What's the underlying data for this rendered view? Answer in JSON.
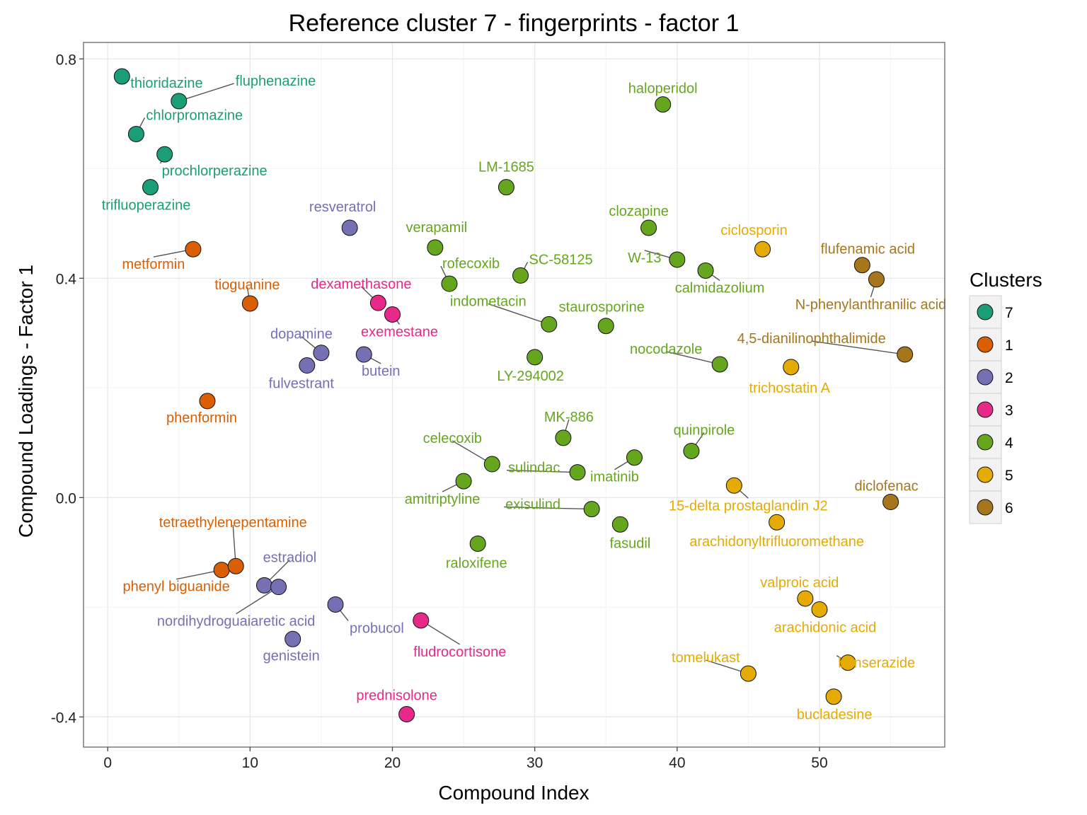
{
  "chart_data": {
    "type": "scatter",
    "title": "Reference cluster 7 - fingerprints - factor 1",
    "xlabel": "Compound Index",
    "ylabel": "Compound Loadings - Factor 1",
    "xlim": [
      -1.7,
      58.8
    ],
    "ylim": [
      -0.455,
      0.83
    ],
    "xticks": [
      0,
      10,
      20,
      30,
      40,
      50
    ],
    "yticks": [
      0.8,
      0.4,
      0.0,
      -0.4
    ],
    "ytick_labels": [
      "0.8",
      "0.4",
      "0.0",
      "-0.4"
    ],
    "grid": true,
    "legend": {
      "title": "Clusters",
      "placement": "right",
      "entries": [
        {
          "label": "7",
          "color": "#1B9E77"
        },
        {
          "label": "1",
          "color": "#D95F02"
        },
        {
          "label": "2",
          "color": "#7570B3"
        },
        {
          "label": "3",
          "color": "#E7298A"
        },
        {
          "label": "4",
          "color": "#66A61E"
        },
        {
          "label": "5",
          "color": "#E6AB02"
        },
        {
          "label": "6",
          "color": "#A6761D"
        }
      ]
    },
    "points": [
      {
        "name": "thioridazine",
        "x": 1,
        "y": 0.768,
        "cluster": "7"
      },
      {
        "name": "chlorpromazine",
        "x": 2,
        "y": 0.663,
        "cluster": "7"
      },
      {
        "name": "trifluoperazine",
        "x": 3,
        "y": 0.566,
        "cluster": "7"
      },
      {
        "name": "prochlorperazine",
        "x": 4,
        "y": 0.626,
        "cluster": "7"
      },
      {
        "name": "fluphenazine",
        "x": 5,
        "y": 0.723,
        "cluster": "7"
      },
      {
        "name": "metformin",
        "x": 6,
        "y": 0.453,
        "cluster": "1"
      },
      {
        "name": "phenformin",
        "x": 7,
        "y": 0.176,
        "cluster": "1"
      },
      {
        "name": "phenyl biguanide",
        "x": 8,
        "y": -0.132,
        "cluster": "1"
      },
      {
        "name": "tetraethylenepentamine",
        "x": 9,
        "y": -0.125,
        "cluster": "1"
      },
      {
        "name": "tioguanine",
        "x": 10,
        "y": 0.354,
        "cluster": "1"
      },
      {
        "name": "estradiol",
        "x": 11,
        "y": -0.16,
        "cluster": "2"
      },
      {
        "name": "nordihydroguaiaretic acid",
        "x": 12,
        "y": -0.163,
        "cluster": "2"
      },
      {
        "name": "genistein",
        "x": 13,
        "y": -0.258,
        "cluster": "2"
      },
      {
        "name": "fulvestrant",
        "x": 14,
        "y": 0.241,
        "cluster": "2"
      },
      {
        "name": "dopamine",
        "x": 15,
        "y": 0.264,
        "cluster": "2"
      },
      {
        "name": "probucol",
        "x": 16,
        "y": -0.195,
        "cluster": "2"
      },
      {
        "name": "resveratrol",
        "x": 17,
        "y": 0.492,
        "cluster": "2"
      },
      {
        "name": "butein",
        "x": 18,
        "y": 0.261,
        "cluster": "2"
      },
      {
        "name": "dexamethasone",
        "x": 19,
        "y": 0.355,
        "cluster": "3"
      },
      {
        "name": "exemestane",
        "x": 20,
        "y": 0.334,
        "cluster": "3"
      },
      {
        "name": "prednisolone",
        "x": 21,
        "y": -0.395,
        "cluster": "3"
      },
      {
        "name": "fludrocortisone",
        "x": 22,
        "y": -0.224,
        "cluster": "3"
      },
      {
        "name": "verapamil",
        "x": 23,
        "y": 0.456,
        "cluster": "4"
      },
      {
        "name": "rofecoxib",
        "x": 24,
        "y": 0.39,
        "cluster": "4"
      },
      {
        "name": "amitriptyline",
        "x": 25,
        "y": 0.03,
        "cluster": "4"
      },
      {
        "name": "raloxifene",
        "x": 26,
        "y": -0.084,
        "cluster": "4"
      },
      {
        "name": "celecoxib",
        "x": 27,
        "y": 0.061,
        "cluster": "4"
      },
      {
        "name": "LM-1685",
        "x": 28,
        "y": 0.566,
        "cluster": "4"
      },
      {
        "name": "SC-58125",
        "x": 29,
        "y": 0.405,
        "cluster": "4"
      },
      {
        "name": "LY-294002",
        "x": 30,
        "y": 0.256,
        "cluster": "4"
      },
      {
        "name": "indometacin",
        "x": 31,
        "y": 0.316,
        "cluster": "4"
      },
      {
        "name": "MK-886",
        "x": 32,
        "y": 0.109,
        "cluster": "4"
      },
      {
        "name": "sulindac",
        "x": 33,
        "y": 0.046,
        "cluster": "4"
      },
      {
        "name": "exisulind",
        "x": 34,
        "y": -0.021,
        "cluster": "4"
      },
      {
        "name": "staurosporine",
        "x": 35,
        "y": 0.313,
        "cluster": "4"
      },
      {
        "name": "fasudil",
        "x": 36,
        "y": -0.049,
        "cluster": "4"
      },
      {
        "name": "imatinib",
        "x": 37,
        "y": 0.073,
        "cluster": "4"
      },
      {
        "name": "clozapine",
        "x": 38,
        "y": 0.492,
        "cluster": "4"
      },
      {
        "name": "haloperidol",
        "x": 39,
        "y": 0.717,
        "cluster": "4"
      },
      {
        "name": "W-13",
        "x": 40,
        "y": 0.434,
        "cluster": "4"
      },
      {
        "name": "quinpirole",
        "x": 41,
        "y": 0.085,
        "cluster": "4"
      },
      {
        "name": "calmidazolium",
        "x": 42,
        "y": 0.414,
        "cluster": "4"
      },
      {
        "name": "nocodazole",
        "x": 43,
        "y": 0.243,
        "cluster": "4"
      },
      {
        "name": "15-delta prostaglandin J2",
        "x": 44,
        "y": 0.022,
        "cluster": "5"
      },
      {
        "name": "tomelukast",
        "x": 45,
        "y": -0.321,
        "cluster": "5"
      },
      {
        "name": "ciclosporin",
        "x": 46,
        "y": 0.453,
        "cluster": "5"
      },
      {
        "name": "arachidonyltrifluoromethane",
        "x": 47,
        "y": -0.045,
        "cluster": "5"
      },
      {
        "name": "trichostatin A",
        "x": 48,
        "y": 0.238,
        "cluster": "5"
      },
      {
        "name": "valproic acid",
        "x": 49,
        "y": -0.184,
        "cluster": "5"
      },
      {
        "name": "arachidonic acid",
        "x": 50,
        "y": -0.204,
        "cluster": "5"
      },
      {
        "name": "bucladesine",
        "x": 51,
        "y": -0.363,
        "cluster": "5"
      },
      {
        "name": "benserazide",
        "x": 52,
        "y": -0.301,
        "cluster": "5"
      },
      {
        "name": "flufenamic acid",
        "x": 53,
        "y": 0.424,
        "cluster": "6"
      },
      {
        "name": "N-phenylanthranilic acid",
        "x": 54,
        "y": 0.398,
        "cluster": "6"
      },
      {
        "name": "diclofenac",
        "x": 55,
        "y": -0.008,
        "cluster": "6"
      },
      {
        "name": "4,5-dianilinophthalimide",
        "x": 56,
        "y": 0.261,
        "cluster": "6"
      }
    ]
  }
}
